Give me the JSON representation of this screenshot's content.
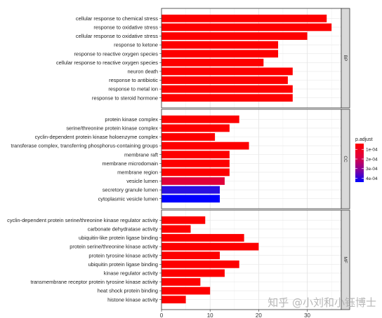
{
  "chart_data": {
    "type": "bar",
    "orientation": "horizontal",
    "xlim": [
      0,
      37
    ],
    "x_ticks": [
      0,
      10,
      20,
      30
    ],
    "xlabel": "",
    "ylabel": "",
    "grid": true,
    "legend": {
      "title": "p.adjust",
      "placement": "right",
      "ticks": [
        "1e-04",
        "2e-04",
        "3e-04",
        "4e-04"
      ],
      "color_low": "#ff0000",
      "color_high": "#0000ff"
    },
    "facets": [
      {
        "label": "BP",
        "categories": [
          "cellular response to chemical stress",
          "response to oxidative stress",
          "cellular response to oxidative stress",
          "response to ketone",
          "response to reactive oxygen species",
          "cellular response to reactive oxygen species",
          "neuron death",
          "response to antibiotic",
          "response to metal ion",
          "response to steroid hormone"
        ],
        "values": [
          34,
          35,
          30,
          24,
          24,
          21,
          27,
          26,
          27,
          27
        ],
        "colors": [
          "#fd0000",
          "#fd0000",
          "#fd0000",
          "#fd0000",
          "#fd0000",
          "#fd0000",
          "#fd0000",
          "#fd0000",
          "#fd0000",
          "#fd0000"
        ]
      },
      {
        "label": "CC",
        "categories": [
          "protein kinase complex",
          "serine/threonine protein kinase complex",
          "cyclin-dependent protein kinase holoenzyme complex",
          "transferase complex, transferring phosphorus-containing groups",
          "membrane raft",
          "membrane microdomain",
          "membrane region",
          "vesicle lumen",
          "secretory granule lumen",
          "cytoplasmic vesicle lumen"
        ],
        "values": [
          16,
          14,
          11,
          18,
          14,
          14,
          14,
          13,
          12,
          12
        ],
        "colors": [
          "#fd0000",
          "#fd0000",
          "#fd0000",
          "#fd0000",
          "#fd0000",
          "#fd0000",
          "#fd0000",
          "#e0003a",
          "#2a10e0",
          "#0000ff"
        ]
      },
      {
        "label": "MF",
        "categories": [
          "cyclin-dependent protein serine/threonine kinase regulator activity",
          "carbonate dehydratase activity",
          "ubiquitin-like protein ligase binding",
          "protein serine/threonine kinase activity",
          "protein tyrosine kinase activity",
          "ubiquitin protein ligase binding",
          "kinase regulator activity",
          "transmembrane receptor protein tyrosine kinase activity",
          "heat shock protein binding",
          "histone kinase activity"
        ],
        "values": [
          9,
          6,
          17,
          20,
          12,
          16,
          13,
          8,
          10,
          5
        ],
        "colors": [
          "#fd0000",
          "#fd0000",
          "#fd0000",
          "#fd0000",
          "#fd0000",
          "#fd0000",
          "#fd0000",
          "#fd0000",
          "#fd0000",
          "#fd0000"
        ]
      }
    ]
  },
  "watermark": "知乎 @小刘和小钰博士"
}
